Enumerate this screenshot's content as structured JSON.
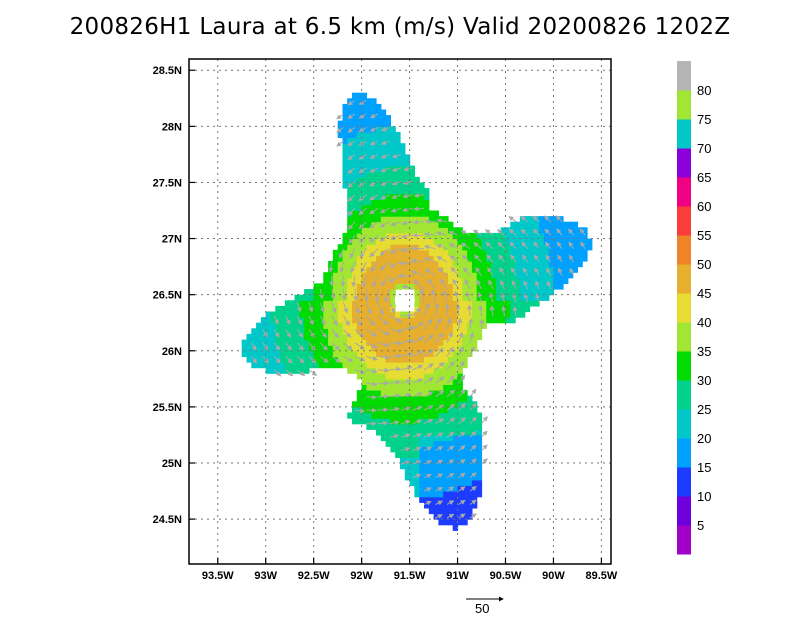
{
  "title": "200826H1 Laura at 6.5 km (m/s) Valid 20200826  1202Z",
  "chart_data": {
    "type": "heatmap",
    "title": "200826H1 Laura at 6.5 km (m/s) Valid 20200826  1202Z",
    "xlabel": "",
    "ylabel": "",
    "xlim": [
      -93.8,
      -89.4
    ],
    "ylim": [
      24.1,
      28.6
    ],
    "x_ticks": [
      {
        "value": -93.5,
        "label": "93.5W"
      },
      {
        "value": -93.0,
        "label": "93W"
      },
      {
        "value": -92.5,
        "label": "92.5W"
      },
      {
        "value": -92.0,
        "label": "92W"
      },
      {
        "value": -91.5,
        "label": "91.5W"
      },
      {
        "value": -91.0,
        "label": "91W"
      },
      {
        "value": -90.5,
        "label": "90.5W"
      },
      {
        "value": -90.0,
        "label": "90W"
      },
      {
        "value": -89.5,
        "label": "89.5W"
      }
    ],
    "y_ticks": [
      {
        "value": 24.5,
        "label": "24.5N"
      },
      {
        "value": 25.0,
        "label": "25N"
      },
      {
        "value": 25.5,
        "label": "25.5N"
      },
      {
        "value": 26.0,
        "label": "26N"
      },
      {
        "value": 26.5,
        "label": "26.5N"
      },
      {
        "value": 27.0,
        "label": "27N"
      },
      {
        "value": 27.5,
        "label": "27.5N"
      },
      {
        "value": 28.0,
        "label": "28N"
      },
      {
        "value": 28.5,
        "label": "28.5N"
      }
    ],
    "grid": true,
    "storm_center": {
      "lon": -91.55,
      "lat": 26.45
    },
    "colorbar": {
      "labels": [
        "5",
        "10",
        "15",
        "20",
        "25",
        "30",
        "35",
        "40",
        "45",
        "50",
        "55",
        "60",
        "65",
        "70",
        "75",
        "80"
      ],
      "colors": [
        "#a000c8",
        "#6e00dc",
        "#1e3cff",
        "#00a0ff",
        "#00c8c8",
        "#00d28c",
        "#00dc00",
        "#a0e632",
        "#e6dc32",
        "#e6af2d",
        "#f08228",
        "#fa3c3c",
        "#f00082",
        "#8c00dc",
        "#00c8c8",
        "#a0e632",
        "#b4b4b4"
      ]
    },
    "reference_vector": {
      "label": "50",
      "value": 50
    }
  }
}
